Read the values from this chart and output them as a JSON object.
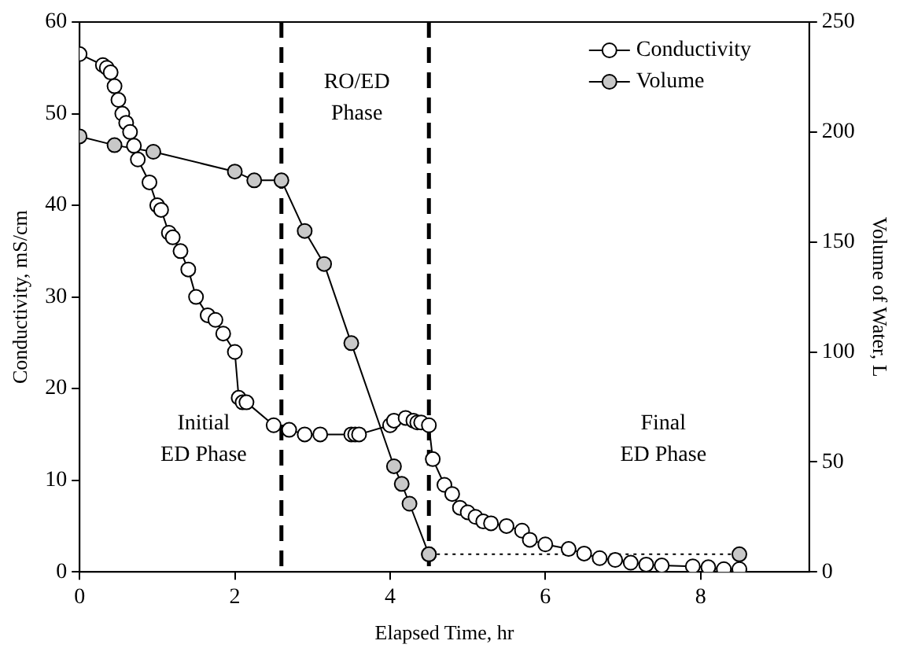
{
  "chart_data": {
    "type": "line",
    "xlabel": "Elapsed Time, hr",
    "ylabel": "Conductivity, mS/cm",
    "y2label": "Volume of Water, L",
    "xlim": [
      0,
      9.4
    ],
    "xticks": [
      0,
      2,
      4,
      6,
      8
    ],
    "ylim": [
      0,
      60
    ],
    "yticks": [
      0,
      10,
      20,
      30,
      40,
      50,
      60
    ],
    "y2lim": [
      0,
      250
    ],
    "y2ticks": [
      0,
      50,
      100,
      150,
      200,
      250
    ],
    "grid": false,
    "legend": "top right",
    "marker": "circle",
    "line_style": "solid",
    "series": [
      {
        "name": "Conductivity",
        "color": "#ffffff",
        "x": [
          0,
          0.3,
          0.35,
          0.4,
          0.45,
          0.5,
          0.55,
          0.6,
          0.65,
          0.7,
          0.75,
          0.9,
          1.0,
          1.05,
          1.15,
          1.2,
          1.3,
          1.4,
          1.5,
          1.65,
          1.75,
          1.85,
          2.0,
          2.05,
          2.1,
          2.15,
          2.5,
          2.7,
          2.9,
          3.1,
          3.5,
          3.55,
          3.6,
          4.0,
          4.05,
          4.2,
          4.3,
          4.35,
          4.4,
          4.5,
          4.55,
          4.7,
          4.8,
          4.9,
          5.0,
          5.1,
          5.2,
          5.3,
          5.5,
          5.7,
          5.8,
          6.0,
          6.3,
          6.5,
          6.7,
          6.9,
          7.1,
          7.3,
          7.5,
          7.9,
          8.1,
          8.3,
          8.5
        ],
        "values": [
          56.5,
          55.3,
          55,
          54.5,
          53,
          51.5,
          50,
          49,
          48,
          46.5,
          45,
          42.5,
          40,
          39.5,
          37,
          36.5,
          35,
          33,
          30,
          28,
          27.5,
          26,
          24,
          19,
          18.5,
          18.5,
          16,
          15.5,
          15,
          15,
          15,
          15,
          15,
          16,
          16.5,
          16.8,
          16.5,
          16.3,
          16.3,
          16,
          12.3,
          9.5,
          8.5,
          7,
          6.5,
          6,
          5.5,
          5.3,
          5,
          4.5,
          3.5,
          3,
          2.5,
          2,
          1.5,
          1.3,
          1,
          0.8,
          0.7,
          0.6,
          0.5,
          0.3,
          0.3
        ]
      },
      {
        "name": "Volume",
        "color": "#c8c8c8",
        "axis": "y2",
        "x": [
          0,
          0.45,
          0.95,
          2.0,
          2.25,
          2.6,
          2.9,
          3.15,
          3.5,
          4.05,
          4.15,
          4.25,
          4.5
        ],
        "values": [
          198,
          194,
          191,
          182,
          178,
          178,
          155,
          140,
          104,
          48,
          40,
          31,
          8
        ]
      },
      {
        "color": "#c8c8c8",
        "axis": "y2",
        "line_style": "dotted",
        "x": [
          4.5,
          8.5
        ],
        "values": [
          8,
          8
        ]
      }
    ],
    "ref_lines": [
      {
        "axis": "x",
        "value": 2.6,
        "color": "#000000",
        "line_style": "dashed"
      },
      {
        "axis": "x",
        "value": 4.5,
        "color": "#000000",
        "line_style": "dashed"
      }
    ],
    "annotations": [
      "Initial\nED Phase",
      "RO/ED\nPhase",
      "Final\nED Phase"
    ]
  }
}
